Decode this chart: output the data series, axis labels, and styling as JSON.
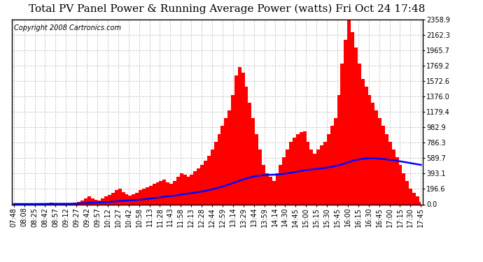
{
  "title": "Total PV Panel Power & Running Average Power (watts) Fri Oct 24 17:48",
  "copyright": "Copyright 2008 Cartronics.com",
  "background_color": "#ffffff",
  "plot_bg_color": "#ffffff",
  "bar_color": "#ff0000",
  "line_color": "#0000ff",
  "grid_color": "#c8c8c8",
  "yticks": [
    0.0,
    196.6,
    393.1,
    589.7,
    786.3,
    982.9,
    1179.4,
    1376.0,
    1572.6,
    1769.2,
    1965.7,
    2162.3,
    2358.9
  ],
  "x_labels": [
    "07:48",
    "08:08",
    "08:25",
    "08:42",
    "08:57",
    "09:12",
    "09:27",
    "09:42",
    "09:57",
    "10:12",
    "10:27",
    "10:42",
    "10:58",
    "11:13",
    "11:28",
    "11:43",
    "11:58",
    "12:13",
    "12:28",
    "12:44",
    "12:59",
    "13:14",
    "13:29",
    "13:44",
    "13:59",
    "14:14",
    "14:30",
    "14:45",
    "15:00",
    "15:15",
    "15:30",
    "15:45",
    "16:00",
    "16:15",
    "16:30",
    "16:45",
    "17:00",
    "17:15",
    "17:30",
    "17:45"
  ],
  "ymax": 2358.9,
  "title_fontsize": 11,
  "copyright_fontsize": 7,
  "tick_fontsize": 7,
  "power_data": [
    5,
    5,
    5,
    5,
    5,
    5,
    5,
    5,
    10,
    10,
    15,
    20,
    10,
    5,
    5,
    5,
    5,
    10,
    20,
    30,
    50,
    80,
    100,
    80,
    60,
    50,
    80,
    100,
    120,
    150,
    180,
    200,
    160,
    130,
    110,
    130,
    150,
    180,
    200,
    220,
    240,
    260,
    280,
    300,
    320,
    280,
    260,
    300,
    350,
    400,
    380,
    350,
    380,
    420,
    460,
    500,
    560,
    620,
    700,
    800,
    900,
    1000,
    1100,
    1200,
    1400,
    1650,
    1750,
    1680,
    1500,
    1300,
    1100,
    900,
    700,
    500,
    400,
    350,
    300,
    400,
    500,
    600,
    700,
    800,
    850,
    900,
    920,
    930,
    800,
    700,
    650,
    700,
    750,
    800,
    900,
    1000,
    1100,
    1400,
    1800,
    2100,
    2358,
    2200,
    2000,
    1800,
    1600,
    1500,
    1400,
    1300,
    1200,
    1100,
    1000,
    900,
    800,
    700,
    600,
    500,
    400,
    300,
    200,
    150,
    100,
    30
  ],
  "running_avg_data": [
    5,
    5,
    5,
    5,
    5,
    5,
    5,
    5,
    6,
    6,
    7,
    8,
    8,
    8,
    8,
    8,
    8,
    9,
    10,
    12,
    14,
    17,
    20,
    22,
    23,
    24,
    26,
    28,
    31,
    35,
    39,
    43,
    46,
    49,
    51,
    54,
    57,
    61,
    65,
    70,
    75,
    80,
    86,
    92,
    98,
    103,
    107,
    112,
    118,
    125,
    132,
    138,
    144,
    150,
    157,
    165,
    173,
    182,
    192,
    203,
    215,
    228,
    242,
    256,
    271,
    287,
    303,
    318,
    332,
    344,
    354,
    362,
    368,
    372,
    375,
    377,
    378,
    381,
    385,
    390,
    396,
    403,
    411,
    419,
    427,
    435,
    441,
    446,
    450,
    455,
    460,
    466,
    473,
    481,
    490,
    500,
    512,
    526,
    541,
    555,
    566,
    575,
    582,
    586,
    588,
    588,
    586,
    583,
    579,
    574,
    568,
    562,
    556,
    549,
    542,
    535,
    527,
    519,
    512,
    504
  ]
}
